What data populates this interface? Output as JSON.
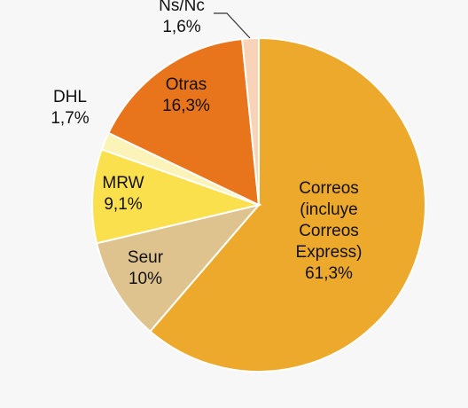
{
  "chart_data": {
    "type": "pie",
    "title": "",
    "slices": [
      {
        "label": "Correos (incluye Correos Express)",
        "label_lines": [
          "Correos",
          "(incluye",
          "Correos",
          "Express)"
        ],
        "value_label": "61,3%",
        "value": 61.3,
        "color": "#eda92c"
      },
      {
        "label": "Seur",
        "label_lines": [
          "Seur"
        ],
        "value_label": "10%",
        "value": 10.0,
        "color": "#dfc38f"
      },
      {
        "label": "MRW",
        "label_lines": [
          "MRW"
        ],
        "value_label": "9,1%",
        "value": 9.1,
        "color": "#fbe04d"
      },
      {
        "label": "DHL",
        "label_lines": [
          "DHL"
        ],
        "value_label": "1,7%",
        "value": 1.7,
        "color": "#fcf3b9"
      },
      {
        "label": "Otras",
        "label_lines": [
          "Otras"
        ],
        "value_label": "16,3%",
        "value": 16.3,
        "color": "#e8741b"
      },
      {
        "label": "Ns/Nc",
        "label_lines": [
          "Ns/Nc"
        ],
        "value_label": "1,6%",
        "value": 1.6,
        "color": "#f9d3b7"
      }
    ],
    "start": "top",
    "direction": "clockwise"
  }
}
